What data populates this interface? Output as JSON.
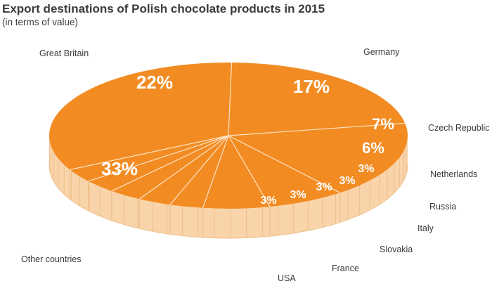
{
  "chart_data": {
    "type": "pie",
    "title": "Export destinations of Polish chocolate products in 2015",
    "subtitle": "(in terms of value)",
    "categories": [
      "Great Britain",
      "Germany",
      "Czech Republic",
      "Netherlands",
      "Russia",
      "Italy",
      "Slovakia",
      "France",
      "USA",
      "Other countries"
    ],
    "values": [
      22,
      17,
      7,
      6,
      3,
      3,
      3,
      3,
      3,
      33
    ],
    "value_labels": [
      "22%",
      "17%",
      "7%",
      "6%",
      "3%",
      "3%",
      "3%",
      "3%",
      "3%",
      "33%"
    ],
    "unit": "%",
    "legend": "none",
    "colors": {
      "top": "#f28c22",
      "side": "#f9d4aa",
      "side_line": "#efbf8b",
      "divider": "#fde3c6",
      "label_text": "#ffffff",
      "category_text": "#3a3a3a"
    }
  }
}
